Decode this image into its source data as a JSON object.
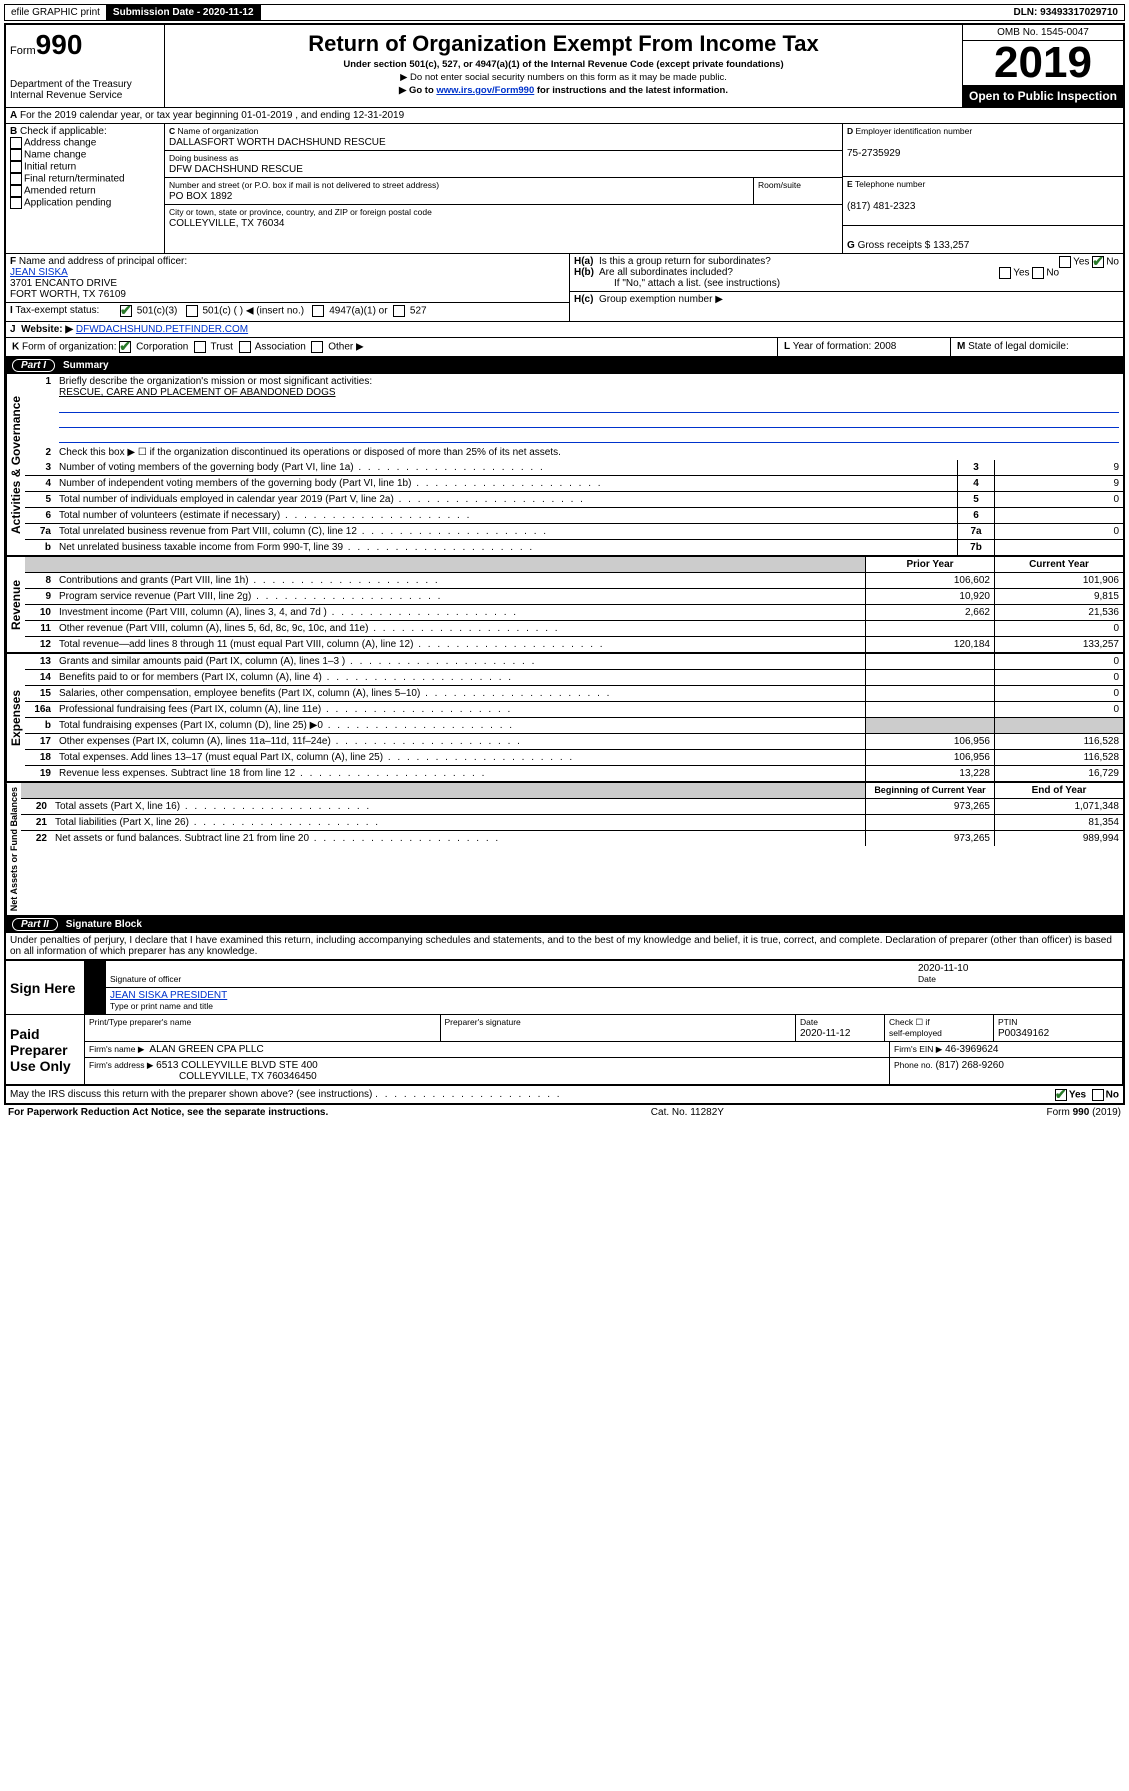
{
  "topbar": {
    "efile": "efile GRAPHIC print",
    "submission_label": "Submission Date - 2020-11-12",
    "dln": "DLN: 93493317029710"
  },
  "header": {
    "form_prefix": "Form",
    "form_number": "990",
    "dept": "Department of the Treasury",
    "irs": "Internal Revenue Service",
    "title": "Return of Organization Exempt From Income Tax",
    "subtitle": "Under section 501(c), 527, or 4947(a)(1) of the Internal Revenue Code (except private foundations)",
    "note1": "▶ Do not enter social security numbers on this form as it may be made public.",
    "note2_pre": "▶ Go to ",
    "note2_link": "www.irs.gov/Form990",
    "note2_post": " for instructions and the latest information.",
    "omb": "OMB No. 1545-0047",
    "year": "2019",
    "open": "Open to Public Inspection"
  },
  "periodA": "For the 2019 calendar year, or tax year beginning 01-01-2019   , and ending 12-31-2019",
  "sectionB": {
    "label": "Check if applicable:",
    "checks": [
      "Address change",
      "Name change",
      "Initial return",
      "Final return/terminated",
      "Amended return",
      "Application pending"
    ],
    "c_label": "Name of organization",
    "org_name": "DALLASFORT WORTH DACHSHUND RESCUE",
    "dba_label": "Doing business as",
    "dba": "DFW DACHSHUND RESCUE",
    "addr_label": "Number and street (or P.O. box if mail is not delivered to street address)",
    "room_label": "Room/suite",
    "addr": "PO BOX 1892",
    "city_label": "City or town, state or province, country, and ZIP or foreign postal code",
    "city": "COLLEYVILLE, TX  76034",
    "d_label": "Employer identification number",
    "ein": "75-2735929",
    "e_label": "Telephone number",
    "phone": "(817) 481-2323",
    "g_label": "Gross receipts $",
    "gross": "133,257"
  },
  "sectionF": {
    "label": "Name and address of principal officer:",
    "name": "JEAN SISKA",
    "addr1": "3701 ENCANTO DRIVE",
    "addr2": "FORT WORTH, TX  76109"
  },
  "sectionH": {
    "a": "Is this a group return for subordinates?",
    "b": "Are all subordinates included?",
    "b_note": "If \"No,\" attach a list. (see instructions)",
    "c": "Group exemption number ▶"
  },
  "sectionI": {
    "label": "Tax-exempt status:",
    "opts": [
      "501(c)(3)",
      "501(c) (  ) ◀ (insert no.)",
      "4947(a)(1) or",
      "527"
    ]
  },
  "sectionJ": {
    "label": "Website: ▶",
    "value": "DFWDACHSHUND.PETFINDER.COM"
  },
  "sectionK": {
    "label": "Form of organization:",
    "opts": [
      "Corporation",
      "Trust",
      "Association",
      "Other ▶"
    ]
  },
  "sectionL": {
    "label": "Year of formation:",
    "value": "2008"
  },
  "sectionM": {
    "label": "State of legal domicile:",
    "value": ""
  },
  "part1": {
    "title": "Part I",
    "subtitle": "Summary",
    "line1_label": "Briefly describe the organization's mission or most significant activities:",
    "mission": "RESCUE, CARE AND PLACEMENT OF ABANDONED DOGS",
    "line2": "Check this box ▶ ☐  if the organization discontinued its operations or disposed of more than 25% of its net assets.",
    "rows_gov": [
      {
        "n": "3",
        "d": "Number of voting members of the governing body (Part VI, line 1a)",
        "box": "3",
        "v": "9"
      },
      {
        "n": "4",
        "d": "Number of independent voting members of the governing body (Part VI, line 1b)",
        "box": "4",
        "v": "9"
      },
      {
        "n": "5",
        "d": "Total number of individuals employed in calendar year 2019 (Part V, line 2a)",
        "box": "5",
        "v": "0"
      },
      {
        "n": "6",
        "d": "Total number of volunteers (estimate if necessary)",
        "box": "6",
        "v": ""
      },
      {
        "n": "7a",
        "d": "Total unrelated business revenue from Part VIII, column (C), line 12",
        "box": "7a",
        "v": "0"
      },
      {
        "n": "b",
        "d": "Net unrelated business taxable income from Form 990-T, line 39",
        "box": "7b",
        "v": ""
      }
    ],
    "col_prior": "Prior Year",
    "col_current": "Current Year",
    "rows_rev": [
      {
        "n": "8",
        "d": "Contributions and grants (Part VIII, line 1h)",
        "p": "106,602",
        "c": "101,906"
      },
      {
        "n": "9",
        "d": "Program service revenue (Part VIII, line 2g)",
        "p": "10,920",
        "c": "9,815"
      },
      {
        "n": "10",
        "d": "Investment income (Part VIII, column (A), lines 3, 4, and 7d )",
        "p": "2,662",
        "c": "21,536"
      },
      {
        "n": "11",
        "d": "Other revenue (Part VIII, column (A), lines 5, 6d, 8c, 9c, 10c, and 11e)",
        "p": "",
        "c": "0"
      },
      {
        "n": "12",
        "d": "Total revenue—add lines 8 through 11 (must equal Part VIII, column (A), line 12)",
        "p": "120,184",
        "c": "133,257"
      }
    ],
    "rows_exp": [
      {
        "n": "13",
        "d": "Grants and similar amounts paid (Part IX, column (A), lines 1–3 )",
        "p": "",
        "c": "0"
      },
      {
        "n": "14",
        "d": "Benefits paid to or for members (Part IX, column (A), line 4)",
        "p": "",
        "c": "0"
      },
      {
        "n": "15",
        "d": "Salaries, other compensation, employee benefits (Part IX, column (A), lines 5–10)",
        "p": "",
        "c": "0"
      },
      {
        "n": "16a",
        "d": "Professional fundraising fees (Part IX, column (A), line 11e)",
        "p": "",
        "c": "0"
      },
      {
        "n": "b",
        "d": "Total fundraising expenses (Part IX, column (D), line 25) ▶0",
        "p": "GREY",
        "c": "GREY"
      },
      {
        "n": "17",
        "d": "Other expenses (Part IX, column (A), lines 11a–11d, 11f–24e)",
        "p": "106,956",
        "c": "116,528"
      },
      {
        "n": "18",
        "d": "Total expenses. Add lines 13–17 (must equal Part IX, column (A), line 25)",
        "p": "106,956",
        "c": "116,528"
      },
      {
        "n": "19",
        "d": "Revenue less expenses. Subtract line 18 from line 12",
        "p": "13,228",
        "c": "16,729"
      }
    ],
    "col_begin": "Beginning of Current Year",
    "col_end": "End of Year",
    "rows_net": [
      {
        "n": "20",
        "d": "Total assets (Part X, line 16)",
        "p": "973,265",
        "c": "1,071,348"
      },
      {
        "n": "21",
        "d": "Total liabilities (Part X, line 26)",
        "p": "",
        "c": "81,354"
      },
      {
        "n": "22",
        "d": "Net assets or fund balances. Subtract line 21 from line 20",
        "p": "973,265",
        "c": "989,994"
      }
    ]
  },
  "part2": {
    "title": "Part II",
    "subtitle": "Signature Block",
    "perjury": "Under penalties of perjury, I declare that I have examined this return, including accompanying schedules and statements, and to the best of my knowledge and belief, it is true, correct, and complete. Declaration of preparer (other than officer) is based on all information of which preparer has any knowledge.",
    "sign_here": "Sign Here",
    "sig_officer": "Signature of officer",
    "sig_date_label": "Date",
    "sig_date": "2020-11-10",
    "officer_name": "JEAN SISKA PRESIDENT",
    "type_name": "Type or print name and title",
    "paid": "Paid Preparer Use Only",
    "prep_name_label": "Print/Type preparer's name",
    "prep_sig_label": "Preparer's signature",
    "prep_date": "2020-11-12",
    "self_emp": "self-employed",
    "check_if": "Check ☐ if",
    "ptin_label": "PTIN",
    "ptin": "P00349162",
    "firm_name_label": "Firm's name    ▶",
    "firm_name": "ALAN GREEN CPA PLLC",
    "firm_ein_label": "Firm's EIN ▶",
    "firm_ein": "46-3969624",
    "firm_addr_label": "Firm's address ▶",
    "firm_addr1": "6513 COLLEYVILLE BLVD STE 400",
    "firm_addr2": "COLLEYVILLE, TX  760346450",
    "firm_phone_label": "Phone no.",
    "firm_phone": "(817) 268-9260",
    "discuss": "May the IRS discuss this return with the preparer shown above? (see instructions)"
  },
  "footer": {
    "pra": "For Paperwork Reduction Act Notice, see the separate instructions.",
    "cat": "Cat. No. 11282Y",
    "form": "Form 990 (2019)"
  },
  "vlabels": {
    "gov": "Activities & Governance",
    "rev": "Revenue",
    "exp": "Expenses",
    "net": "Net Assets or Fund Balances"
  }
}
